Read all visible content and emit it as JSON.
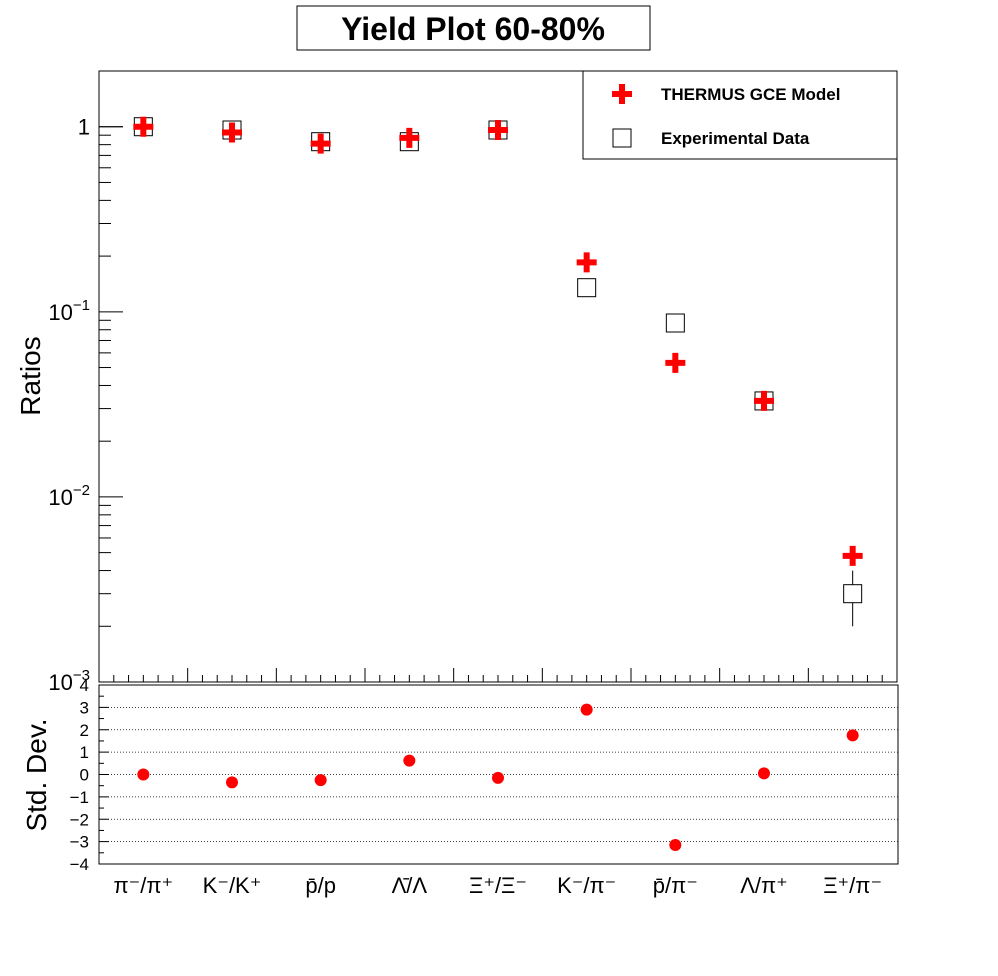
{
  "chart_data": [
    {
      "type": "scatter",
      "title": "Yield Plot 60-80%",
      "ylabel": "Ratios",
      "yscale": "log",
      "ylim": [
        0.001,
        2.0
      ],
      "categories": [
        "π⁻/π⁺",
        "K⁻/K⁺",
        "p̄/p",
        "Λ̄/Λ",
        "Ξ⁺/Ξ⁻",
        "K⁻/π⁻",
        "p̄/π⁻",
        "Λ/π⁺",
        "Ξ⁺/π⁻"
      ],
      "y_tick_labels": [
        {
          "value": 1,
          "label": "1"
        },
        {
          "value": 0.1,
          "base": "10",
          "exp": "−1"
        },
        {
          "value": 0.01,
          "base": "10",
          "exp": "−2"
        },
        {
          "value": 0.001,
          "base": "10",
          "exp": "−3"
        }
      ],
      "series": [
        {
          "name": "THERMUS GCE Model",
          "marker": "cross",
          "color": "#ff0000",
          "values": [
            1.0,
            0.93,
            0.81,
            0.87,
            0.96,
            0.185,
            0.053,
            0.033,
            0.0048
          ]
        },
        {
          "name": "Experimental Data",
          "marker": "open-square",
          "color": "#000000",
          "values": [
            1.0,
            0.96,
            0.83,
            0.83,
            0.96,
            0.135,
            0.087,
            0.033,
            0.003
          ],
          "errors": [
            0.05,
            0.07,
            0.04,
            0.04,
            0.03,
            0.012,
            0.005,
            0.002,
            0.001
          ]
        }
      ],
      "legend": {
        "position": "top-right",
        "entries": [
          "THERMUS GCE Model",
          "Experimental Data"
        ]
      }
    },
    {
      "type": "scatter",
      "ylabel": "Std. Dev.",
      "ylim": [
        -4,
        4
      ],
      "yticks": [
        -4,
        -3,
        -2,
        -1,
        0,
        1,
        2,
        3,
        4
      ],
      "grid": "horizontal dotted",
      "categories": [
        "π⁻/π⁺",
        "K⁻/K⁺",
        "p̄/p",
        "Λ̄/Λ",
        "Ξ⁺/Ξ⁻",
        "K⁻/π⁻",
        "p̄/π⁻",
        "Λ/π⁺",
        "Ξ⁺/π⁻"
      ],
      "series": [
        {
          "name": "",
          "marker": "filled-circle",
          "color": "#ff0000",
          "values": [
            0.0,
            -0.35,
            -0.25,
            0.62,
            -0.15,
            2.9,
            -3.15,
            0.05,
            1.75
          ]
        }
      ]
    }
  ],
  "colors": {
    "model": "#ff0000",
    "data": "#000000",
    "axis": "#000000"
  }
}
